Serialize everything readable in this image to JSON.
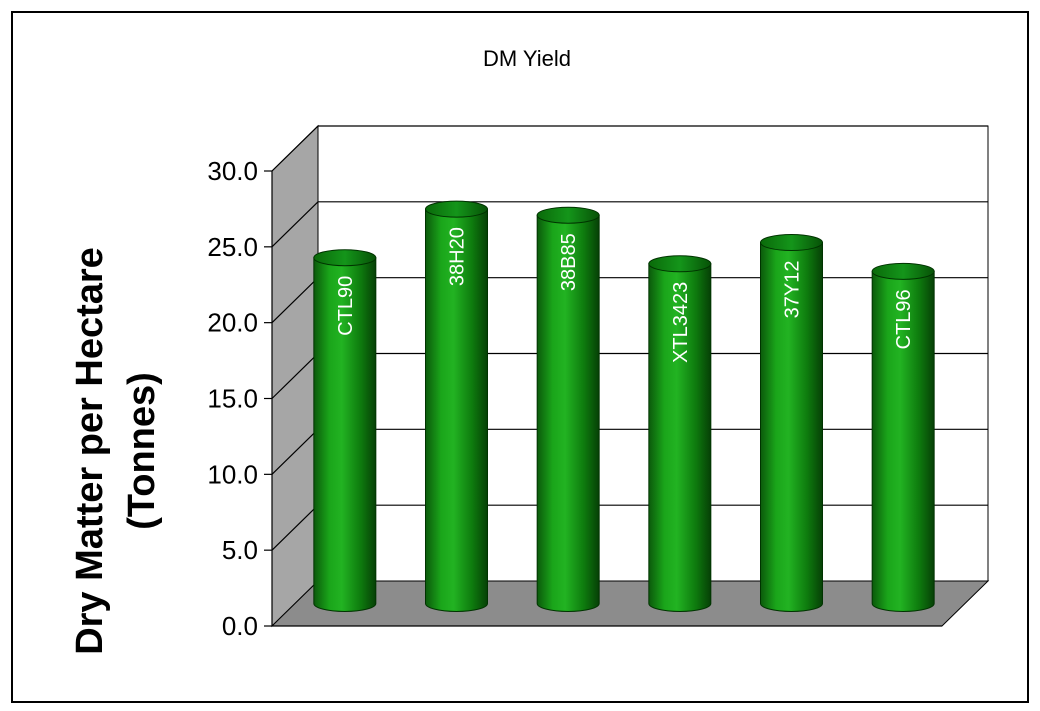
{
  "chart_data": {
    "type": "bar",
    "title": "DM Yield",
    "ylabel_line1": "Dry Matter per Hectare",
    "ylabel_line2": "(Tonnes)",
    "xlabel": "",
    "categories": [
      "CTL90",
      "38H20",
      "38B85",
      "XTL3423",
      "37Y12",
      "CTL96"
    ],
    "values": [
      22.8,
      26.0,
      25.6,
      22.4,
      23.8,
      21.9
    ],
    "ylim": [
      0,
      30
    ],
    "yticks": [
      "0.0",
      "5.0",
      "10.0",
      "15.0",
      "20.0",
      "25.0",
      "30.0"
    ],
    "grid": true,
    "legend": "none",
    "bar_style": "3d-cylinder",
    "bar_color": "#0a8a0a",
    "bar_label_position": "inside-rotated"
  }
}
